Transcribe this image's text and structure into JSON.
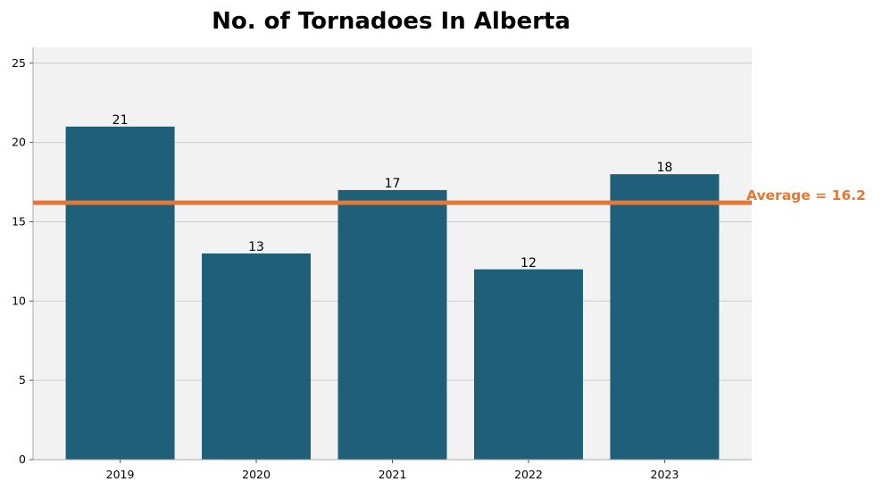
{
  "chart_data": {
    "type": "bar",
    "title": "No. of Tornadoes In Alberta",
    "xlabel": "",
    "ylabel": "",
    "categories": [
      "2019",
      "2020",
      "2021",
      "2022",
      "2023"
    ],
    "values": [
      21,
      13,
      17,
      12,
      18
    ],
    "value_labels": [
      "21",
      "13",
      "17",
      "12",
      "18"
    ],
    "ylim": [
      0,
      26
    ],
    "yticks": [
      0,
      5,
      10,
      15,
      20,
      25
    ],
    "ytick_labels": [
      "0",
      "5",
      "10",
      "15",
      "20",
      "25"
    ],
    "grid": "horizontal",
    "average": {
      "value": 16.2,
      "label": "Average = 16.2"
    },
    "colors": {
      "bar": "#1f5f7a",
      "average_line": "#e87632",
      "plot_background": "#f2f2f2",
      "grid": "#cccccc",
      "axis": "#aaaaaa",
      "text": "#000000"
    }
  }
}
